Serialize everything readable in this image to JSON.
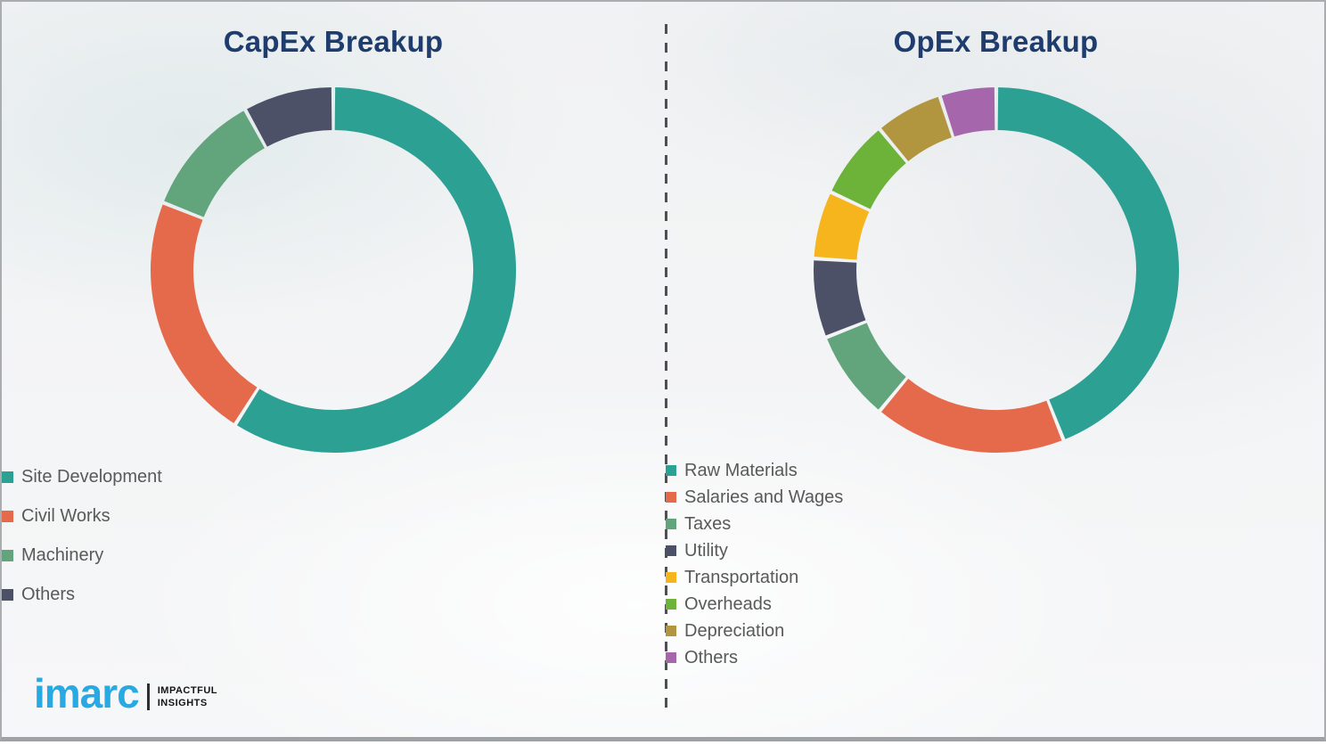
{
  "chart_data": [
    {
      "id": "capex",
      "type": "pie",
      "donut": true,
      "title": "CapEx Breakup",
      "categories": [
        "Site Development",
        "Civil Works",
        "Machinery",
        "Others"
      ],
      "values": [
        59,
        22,
        11,
        8
      ],
      "colors": [
        "#2da094",
        "#e56a4b",
        "#62a47b",
        "#4c5168"
      ],
      "start_angle_deg": 0,
      "direction": "clockwise",
      "legend_position": "below-left"
    },
    {
      "id": "opex",
      "type": "pie",
      "donut": true,
      "title": "OpEx Breakup",
      "categories": [
        "Raw Materials",
        "Salaries and Wages",
        "Taxes",
        "Utility",
        "Transportation",
        "Overheads",
        "Depreciation",
        "Others"
      ],
      "values": [
        44,
        17,
        8,
        7,
        6,
        7,
        6,
        5
      ],
      "colors": [
        "#2da094",
        "#e56a4b",
        "#62a47b",
        "#4c5168",
        "#f6b41d",
        "#6db239",
        "#b2953f",
        "#a566ac"
      ],
      "start_angle_deg": 0,
      "direction": "clockwise",
      "legend_position": "below-left"
    }
  ],
  "logo": {
    "brand": "imarc",
    "tagline_line1": "IMPACTFUL",
    "tagline_line2": "INSIGHTS"
  }
}
